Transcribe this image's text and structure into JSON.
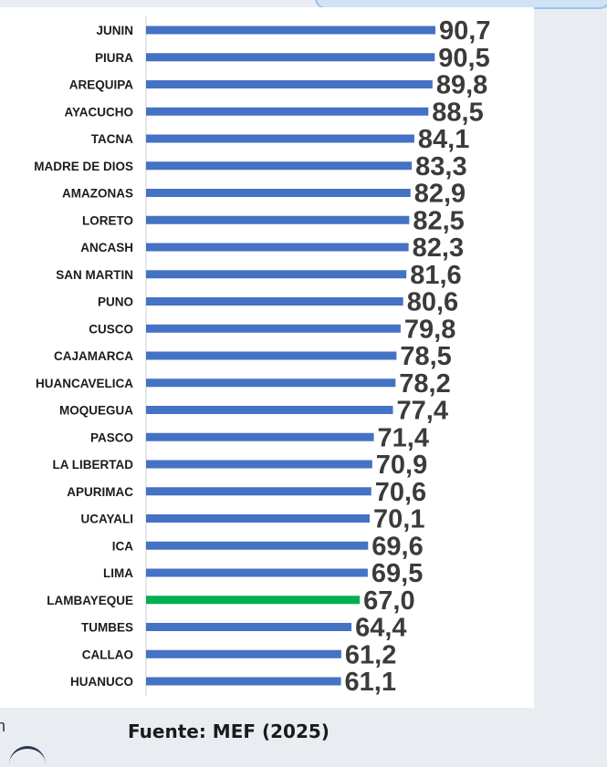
{
  "chart_data": {
    "type": "bar",
    "orientation": "horizontal",
    "categories": [
      "JUNIN",
      "PIURA",
      "AREQUIPA",
      "AYACUCHO",
      "TACNA",
      "MADRE DE DIOS",
      "AMAZONAS",
      "LORETO",
      "ANCASH",
      "SAN MARTIN",
      "PUNO",
      "CUSCO",
      "CAJAMARCA",
      "HUANCAVELICA",
      "MOQUEGUA",
      "PASCO",
      "LA LIBERTAD",
      "APURIMAC",
      "UCAYALI",
      "ICA",
      "LIMA",
      "LAMBAYEQUE",
      "TUMBES",
      "CALLAO",
      "HUANUCO"
    ],
    "value_labels": [
      "90,7",
      "90,5",
      "89,8",
      "88,5",
      "84,1",
      "83,3",
      "82,9",
      "82,5",
      "82,3",
      "81,6",
      "80,6",
      "79,8",
      "78,5",
      "78,2",
      "77,4",
      "71,4",
      "70,9",
      "70,6",
      "70,1",
      "69,6",
      "69,5",
      "67,0",
      "64,4",
      "61,2",
      "61,1"
    ],
    "values": [
      90.7,
      90.5,
      89.8,
      88.5,
      84.1,
      83.3,
      82.9,
      82.5,
      82.3,
      81.6,
      80.6,
      79.8,
      78.5,
      78.2,
      77.4,
      71.4,
      70.9,
      70.6,
      70.1,
      69.6,
      69.5,
      67.0,
      64.4,
      61.2,
      61.1
    ],
    "highlight_category": "LAMBAYEQUE",
    "colors": {
      "bar": "#4472c4",
      "highlight": "#00b050"
    },
    "xlim": [
      0,
      90.7
    ],
    "grid": false,
    "legend": "none"
  },
  "footer": {
    "source": "Fuente: MEF (2025)",
    "left_fragment": "n"
  }
}
